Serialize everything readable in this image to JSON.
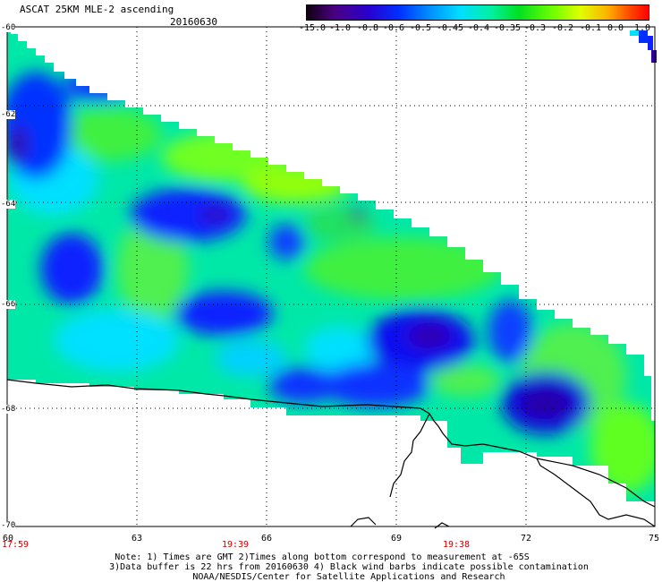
{
  "header": {
    "title": "ASCAT 25KM MLE-2 ascending",
    "date": "20160630"
  },
  "colorbar": {
    "labels": [
      "-15.0",
      "-1.0",
      "-0.8",
      "-0.6",
      "-0.5",
      "-0.45",
      "-0.4",
      "-0.35",
      "-0.3",
      "-0.2",
      "-0.1",
      "0.0",
      "1.0"
    ],
    "colors": [
      "#1a0030",
      "#4b0082",
      "#2a00d0",
      "#0030ff",
      "#0090ff",
      "#00e0ff",
      "#00f0a0",
      "#00e020",
      "#70ff00",
      "#e0ff00",
      "#ffb000",
      "#ff4000",
      "#ff0000"
    ]
  },
  "axes": {
    "lat_labels": [
      "-60",
      "-62",
      "-64",
      "-66",
      "-68",
      "-70"
    ],
    "lon_labels": [
      "60",
      "63",
      "66",
      "69",
      "72",
      "75"
    ],
    "times": [
      "17:59",
      "19:39",
      "19:38"
    ]
  },
  "notes": {
    "line1": "Note: 1) Times are GMT 2)Times along bottom correspond to measurement at -65S",
    "line2": "3)Data buffer is 22 hrs from 20160630 4) Black wind barbs indicate possible contamination",
    "line3": "NOAA/NESDIS/Center for Satellite Applications and Research"
  }
}
